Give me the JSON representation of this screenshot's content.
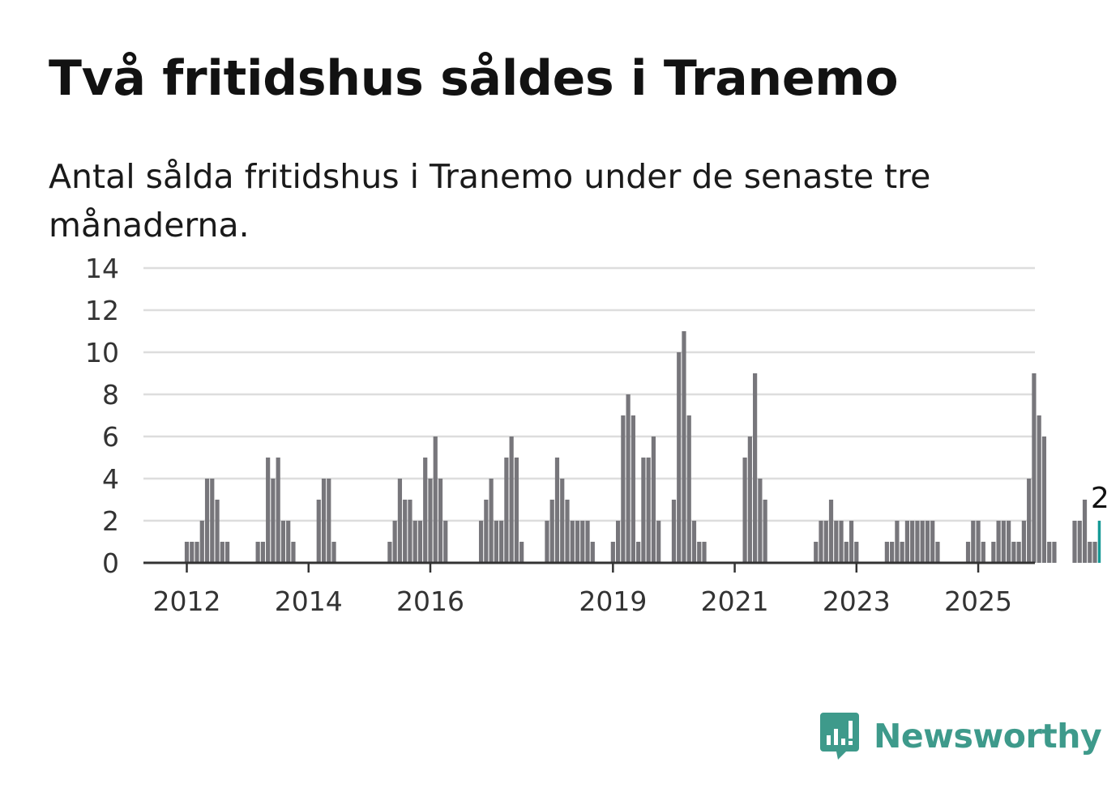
{
  "title": "Två fritidshus såldes i Tranemo",
  "subtitle": "Antal sålda fritidshus i Tranemo under de senaste tre månaderna.",
  "brand": {
    "name": "Newsworthy",
    "icon": "newsworthy-logo-icon",
    "color": "#3e9a8b"
  },
  "colors": {
    "bar": "#77767b",
    "highlight": "#169a96",
    "grid": "#dddddd",
    "axis": "#333333"
  },
  "chart_data": {
    "type": "bar",
    "start": "2012-01",
    "ylim": [
      0,
      14
    ],
    "yticks": [
      0,
      2,
      4,
      6,
      8,
      10,
      12,
      14
    ],
    "xticks": [
      {
        "label": "2012",
        "index": 0
      },
      {
        "label": "2014",
        "index": 24
      },
      {
        "label": "2016",
        "index": 48
      },
      {
        "label": "2019",
        "index": 84
      },
      {
        "label": "2021",
        "index": 108
      },
      {
        "label": "2023",
        "index": 132
      },
      {
        "label": "2025",
        "index": 156
      }
    ],
    "grid": true,
    "values": [
      1,
      1,
      1,
      2,
      4,
      4,
      3,
      1,
      1,
      0,
      0,
      0,
      0,
      0,
      1,
      1,
      5,
      4,
      5,
      2,
      2,
      1,
      0,
      0,
      0,
      0,
      3,
      4,
      4,
      1,
      0,
      0,
      0,
      0,
      0,
      0,
      0,
      0,
      0,
      0,
      1,
      2,
      4,
      3,
      3,
      2,
      2,
      5,
      4,
      6,
      4,
      2,
      0,
      0,
      0,
      0,
      0,
      0,
      2,
      3,
      4,
      2,
      2,
      5,
      6,
      5,
      1,
      0,
      0,
      0,
      0,
      2,
      3,
      5,
      4,
      3,
      2,
      2,
      2,
      2,
      1,
      0,
      0,
      0,
      1,
      2,
      7,
      8,
      7,
      1,
      5,
      5,
      6,
      2,
      0,
      0,
      3,
      10,
      11,
      7,
      2,
      1,
      1,
      0,
      0,
      0,
      0,
      0,
      0,
      0,
      5,
      6,
      9,
      4,
      3,
      0,
      0,
      0,
      0,
      0,
      0,
      0,
      0,
      0,
      1,
      2,
      2,
      3,
      2,
      2,
      1,
      2,
      1,
      0,
      0,
      0,
      0,
      0,
      1,
      1,
      2,
      1,
      2,
      2,
      2,
      2,
      2,
      2,
      1,
      0,
      0,
      0,
      0,
      0,
      1,
      2,
      2,
      1,
      0,
      1,
      2,
      2,
      2,
      1,
      1,
      2,
      4,
      9,
      7,
      6,
      1,
      1,
      0,
      0,
      0,
      2,
      2,
      3,
      1,
      1,
      2
    ],
    "highlight_last": true,
    "annotation": "2"
  }
}
